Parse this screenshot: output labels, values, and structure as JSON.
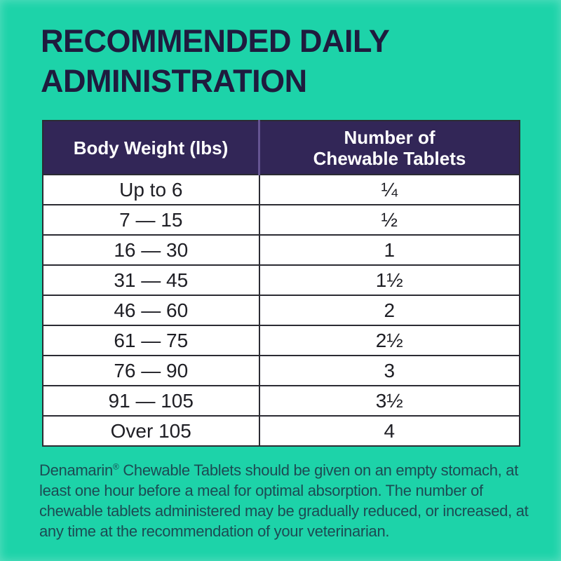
{
  "page": {
    "title": "RECOMMENDED DAILY ADMINISTRATION"
  },
  "colors": {
    "background": "#1dd3a9",
    "title_text": "#1f1b3e",
    "table_header_bg": "#322657",
    "table_header_text": "#ffffff",
    "table_row_bg": "#ffffff",
    "table_border": "#2b2b33",
    "footnote_text": "#1c4b53"
  },
  "table": {
    "headers": [
      "Body Weight (lbs)",
      "Number of Chewable Tablets"
    ],
    "rows": [
      {
        "body_weight": "Up to 6",
        "tablets": "¼"
      },
      {
        "body_weight": "7 — 15",
        "tablets": "½"
      },
      {
        "body_weight": "16 — 30",
        "tablets": "1"
      },
      {
        "body_weight": "31 — 45",
        "tablets": "1½"
      },
      {
        "body_weight": "46 — 60",
        "tablets": "2"
      },
      {
        "body_weight": "61 — 75",
        "tablets": "2½"
      },
      {
        "body_weight": "76 — 90",
        "tablets": "3"
      },
      {
        "body_weight": "91 — 105",
        "tablets": "3½"
      },
      {
        "body_weight": "Over 105",
        "tablets": "4"
      }
    ]
  },
  "footnote": {
    "brand": "Denamarin",
    "registered_mark": "®",
    "text": " Chewable Tablets should be given on an empty stomach, at least one hour before a meal for optimal absorption. The number of chewable tablets administered may be gradually reduced, or increased, at any time at the recommendation of your veterinarian."
  }
}
